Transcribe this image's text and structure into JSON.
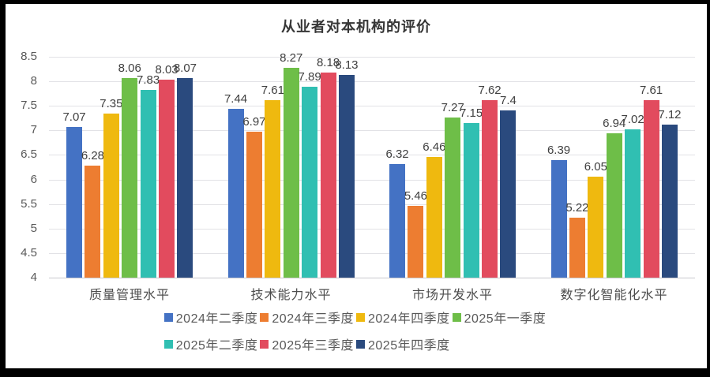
{
  "frame": {
    "border_color": "#000000",
    "background": "#FFFFFF"
  },
  "chart_data": {
    "type": "bar",
    "title": "从业者对本机构的评价",
    "categories": [
      "质量管理水平",
      "技术能力水平",
      "市场开发水平",
      "数字化智能化水平"
    ],
    "series": [
      {
        "name": "2024年二季度",
        "color": "#4472C4",
        "values": [
          7.07,
          7.44,
          6.32,
          6.39
        ]
      },
      {
        "name": "2024年三季度",
        "color": "#ED7D31",
        "values": [
          6.28,
          6.97,
          5.46,
          5.22
        ]
      },
      {
        "name": "2024年四季度",
        "color": "#EFB90F",
        "values": [
          7.35,
          7.61,
          6.46,
          6.05
        ]
      },
      {
        "name": "2025年一季度",
        "color": "#6EBE48",
        "values": [
          8.06,
          8.27,
          7.27,
          6.94
        ]
      },
      {
        "name": "2025年二季度",
        "color": "#30BFB2",
        "values": [
          7.83,
          7.89,
          7.15,
          7.02
        ]
      },
      {
        "name": "2025年三季度",
        "color": "#E24B5E",
        "values": [
          8.03,
          8.18,
          7.62,
          7.61
        ]
      },
      {
        "name": "2025年四季度",
        "color": "#2A4A7E",
        "values": [
          8.07,
          8.13,
          7.4,
          7.12
        ]
      }
    ],
    "ylim": [
      4,
      8.5
    ],
    "ytick_step": 0.5,
    "yticks": [
      "8.5",
      "8",
      "7.5",
      "7",
      "6.5",
      "6",
      "5.5",
      "5",
      "4.5",
      "4"
    ],
    "xlabel": "",
    "ylabel": "",
    "grid": true,
    "data_labels": true,
    "legend_position": "bottom",
    "legend_items_per_row": 4
  }
}
